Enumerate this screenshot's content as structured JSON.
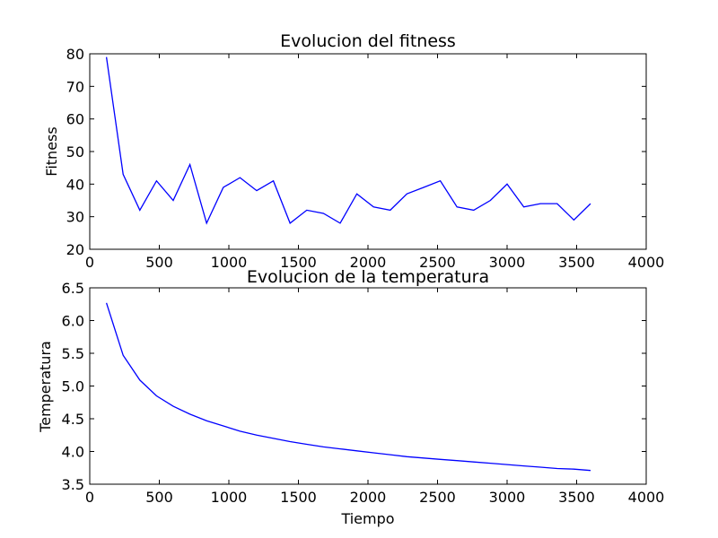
{
  "chart_data": [
    {
      "type": "line",
      "title": "Evolucion del fitness",
      "xlabel": "",
      "ylabel": "Fitness",
      "xlim": [
        0,
        4000
      ],
      "ylim": [
        20,
        80
      ],
      "xticks": [
        0,
        500,
        1000,
        1500,
        2000,
        2500,
        3000,
        3500,
        4000
      ],
      "yticks": [
        20,
        30,
        40,
        50,
        60,
        70,
        80
      ],
      "grid": false,
      "line_color": "#0000ff",
      "series": [
        {
          "x": [
            120,
            240,
            360,
            480,
            600,
            720,
            840,
            960,
            1080,
            1200,
            1320,
            1440,
            1560,
            1680,
            1800,
            1920,
            2040,
            2160,
            2280,
            2400,
            2520,
            2640,
            2760,
            2880,
            3000,
            3120,
            3240,
            3360,
            3480,
            3600
          ],
          "values": [
            79,
            43,
            32,
            41,
            35,
            46,
            28,
            39,
            42,
            38,
            41,
            28,
            32,
            31,
            28,
            37,
            33,
            32,
            37,
            39,
            41,
            33,
            32,
            35,
            40,
            33,
            34,
            34,
            29,
            34
          ]
        }
      ]
    },
    {
      "type": "line",
      "title": "Evolucion de la temperatura",
      "xlabel": "Tiempo",
      "ylabel": "Temperatura",
      "xlim": [
        0,
        4000
      ],
      "ylim": [
        3.5,
        6.5
      ],
      "xticks": [
        0,
        500,
        1000,
        1500,
        2000,
        2500,
        3000,
        3500,
        4000
      ],
      "yticks": [
        3.5,
        4.0,
        4.5,
        5.0,
        5.5,
        6.0,
        6.5
      ],
      "ytick_labels": [
        "3.5",
        "4.0",
        "4.5",
        "5.0",
        "5.5",
        "6.0",
        "6.5"
      ],
      "grid": false,
      "line_color": "#0000ff",
      "series": [
        {
          "x": [
            120,
            240,
            360,
            480,
            600,
            720,
            840,
            960,
            1080,
            1200,
            1320,
            1440,
            1560,
            1680,
            1800,
            1920,
            2040,
            2160,
            2280,
            2400,
            2520,
            2640,
            2760,
            2880,
            3000,
            3120,
            3240,
            3360,
            3480,
            3600
          ],
          "values": [
            6.27,
            5.47,
            5.09,
            4.85,
            4.69,
            4.57,
            4.47,
            4.39,
            4.31,
            4.25,
            4.2,
            4.15,
            4.11,
            4.07,
            4.04,
            4.01,
            3.98,
            3.95,
            3.92,
            3.9,
            3.88,
            3.86,
            3.84,
            3.82,
            3.8,
            3.78,
            3.76,
            3.74,
            3.73,
            3.71
          ]
        }
      ]
    }
  ]
}
